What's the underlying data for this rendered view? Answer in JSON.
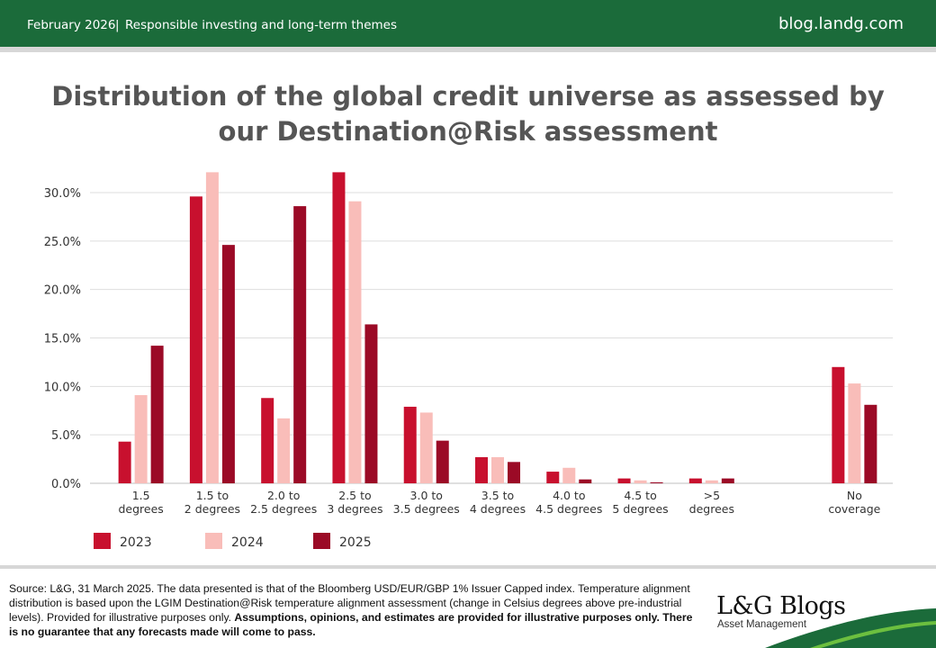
{
  "header": {
    "date": "February 2026",
    "separator": "|",
    "topic": "Responsible investing and long-term themes",
    "site": "blog.landg.com"
  },
  "title_line1": "Distribution of the global credit universe as assessed by",
  "title_line2": "our Destination@Risk assessment",
  "colors": {
    "header_green": "#1b6b3a",
    "series_2023": "#c8102e",
    "series_2024": "#f9bdb9",
    "series_2025": "#9b0a26"
  },
  "chart_data": {
    "type": "bar",
    "categories": [
      [
        "1.5",
        "degrees"
      ],
      [
        "1.5 to",
        "2 degrees"
      ],
      [
        "2.0 to",
        "2.5 degrees"
      ],
      [
        "2.5 to",
        "3 degrees"
      ],
      [
        "3.0 to",
        "3.5 degrees"
      ],
      [
        "3.5 to",
        "4 degrees"
      ],
      [
        "4.0 to",
        "4.5 degrees"
      ],
      [
        "4.5 to",
        "5 degrees"
      ],
      [
        ">5",
        "degrees"
      ],
      [
        "",
        ""
      ],
      [
        "No",
        "coverage"
      ]
    ],
    "series": [
      {
        "name": "2023",
        "color": "#c8102e",
        "values": [
          4.3,
          29.6,
          8.8,
          32.1,
          7.9,
          2.7,
          1.2,
          0.5,
          0.5,
          null,
          12.0
        ]
      },
      {
        "name": "2024",
        "color": "#f9bdb9",
        "values": [
          9.1,
          32.1,
          6.7,
          29.1,
          7.3,
          2.7,
          1.6,
          0.3,
          0.3,
          null,
          10.3
        ]
      },
      {
        "name": "2025",
        "color": "#9b0a26",
        "values": [
          14.2,
          24.6,
          28.6,
          16.4,
          4.4,
          2.2,
          0.4,
          0.1,
          0.5,
          null,
          8.1
        ]
      }
    ],
    "ylim": [
      0,
      30
    ],
    "yticks": [
      "0.0%",
      "5.0%",
      "10.0%",
      "15.0%",
      "20.0%",
      "25.0%",
      "30.0%"
    ],
    "ytick_values": [
      0,
      5,
      10,
      15,
      20,
      25,
      30
    ],
    "grid": true,
    "legend_position": "bottom-left"
  },
  "footer": {
    "source_text": "Source: L&G, 31 March 2025. The data presented is that of the Bloomberg USD/EUR/GBP 1% Issuer Capped index. Temperature alignment distribution is based upon the LGIM Destination@Risk temperature alignment assessment (change in Celsius degrees above pre-industrial levels). Provided for illustrative purposes only. ",
    "disclaimer_bold": "Assumptions, opinions, and estimates are provided for illustrative purposes only. There is no guarantee that any forecasts made will come to pass.",
    "brand_name": "L&G Blogs",
    "brand_sub": "Asset Management"
  }
}
